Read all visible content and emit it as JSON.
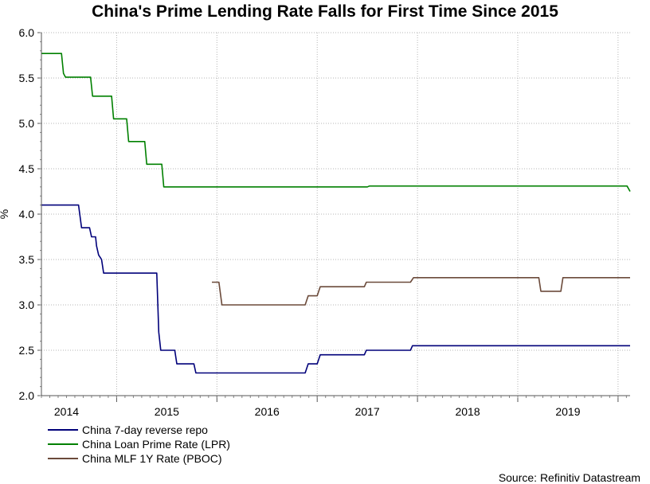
{
  "chart_data": {
    "type": "line",
    "title": "China's Prime Lending Rate Falls for First Time Since 2015",
    "ylabel": "%",
    "ylim": [
      2.0,
      6.0
    ],
    "yticks": [
      "2.0",
      "2.5",
      "3.0",
      "3.5",
      "4.0",
      "4.5",
      "5.0",
      "5.5",
      "6.0"
    ],
    "xlim": [
      2013.75,
      2019.62
    ],
    "xticks": [
      {
        "label": "2014",
        "x": 2014.0
      },
      {
        "label": "2015",
        "x": 2015.0
      },
      {
        "label": "2016",
        "x": 2016.0
      },
      {
        "label": "2017",
        "x": 2017.0
      },
      {
        "label": "2018",
        "x": 2018.0
      },
      {
        "label": "2019",
        "x": 2019.0
      }
    ],
    "year_boundaries": [
      2014.5,
      2015.5,
      2016.5,
      2017.5,
      2018.5,
      2019.5
    ],
    "grid": true,
    "legend": "bottom-left",
    "source": "Source: Refinitiv Datastream",
    "series": [
      {
        "name": "China 7-day reverse repo",
        "color": "#00007a",
        "points": [
          [
            2013.75,
            4.1
          ],
          [
            2014.12,
            4.1
          ],
          [
            2014.15,
            3.85
          ],
          [
            2014.23,
            3.85
          ],
          [
            2014.25,
            3.75
          ],
          [
            2014.29,
            3.75
          ],
          [
            2014.3,
            3.65
          ],
          [
            2014.32,
            3.55
          ],
          [
            2014.35,
            3.5
          ],
          [
            2014.37,
            3.35
          ],
          [
            2014.9,
            3.35
          ],
          [
            2014.92,
            2.7
          ],
          [
            2014.94,
            2.5
          ],
          [
            2015.08,
            2.5
          ],
          [
            2015.1,
            2.35
          ],
          [
            2015.27,
            2.35
          ],
          [
            2015.29,
            2.25
          ],
          [
            2016.38,
            2.25
          ],
          [
            2016.41,
            2.35
          ],
          [
            2016.5,
            2.35
          ],
          [
            2016.53,
            2.45
          ],
          [
            2016.97,
            2.45
          ],
          [
            2016.99,
            2.5
          ],
          [
            2017.43,
            2.5
          ],
          [
            2017.45,
            2.55
          ],
          [
            2019.62,
            2.55
          ]
        ]
      },
      {
        "name": "China Loan Prime Rate (LPR)",
        "color": "#008000",
        "points": [
          [
            2013.75,
            5.77
          ],
          [
            2013.95,
            5.77
          ],
          [
            2013.97,
            5.55
          ],
          [
            2013.99,
            5.51
          ],
          [
            2014.24,
            5.51
          ],
          [
            2014.26,
            5.3
          ],
          [
            2014.45,
            5.3
          ],
          [
            2014.47,
            5.05
          ],
          [
            2014.6,
            5.05
          ],
          [
            2014.62,
            4.8
          ],
          [
            2014.78,
            4.8
          ],
          [
            2014.8,
            4.55
          ],
          [
            2014.95,
            4.55
          ],
          [
            2014.97,
            4.3
          ],
          [
            2017.0,
            4.3
          ],
          [
            2017.02,
            4.31
          ],
          [
            2019.59,
            4.31
          ],
          [
            2019.62,
            4.25
          ]
        ]
      },
      {
        "name": "China MLF 1Y Rate (PBOC)",
        "color": "#6b4a3a",
        "points": [
          [
            2015.45,
            3.25
          ],
          [
            2015.52,
            3.25
          ],
          [
            2015.55,
            3.0
          ],
          [
            2016.38,
            3.0
          ],
          [
            2016.41,
            3.1
          ],
          [
            2016.5,
            3.1
          ],
          [
            2016.53,
            3.2
          ],
          [
            2016.97,
            3.2
          ],
          [
            2016.99,
            3.25
          ],
          [
            2017.43,
            3.25
          ],
          [
            2017.46,
            3.3
          ],
          [
            2018.71,
            3.3
          ],
          [
            2018.73,
            3.15
          ],
          [
            2018.93,
            3.15
          ],
          [
            2018.95,
            3.3
          ],
          [
            2019.62,
            3.3
          ]
        ]
      }
    ]
  }
}
